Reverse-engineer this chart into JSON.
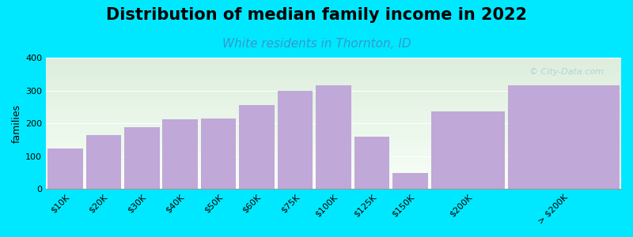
{
  "title": "Distribution of median family income in 2022",
  "subtitle": "White residents in Thornton, ID",
  "ylabel": "families",
  "categories": [
    "$10K",
    "$20K",
    "$30K",
    "$40K",
    "$50K",
    "$60K",
    "$75K",
    "$100K",
    "$125K",
    "$150K",
    "$200K",
    "> $200K"
  ],
  "values": [
    122,
    163,
    188,
    212,
    215,
    255,
    300,
    315,
    158,
    48,
    237,
    315
  ],
  "bar_widths": [
    1,
    1,
    1,
    1,
    1,
    1,
    1,
    1,
    1,
    1,
    2,
    3
  ],
  "bar_color": "#c0a8d8",
  "background_outer": "#00e8ff",
  "grad_top": "#ddeedd",
  "grad_bottom": "#f8fff8",
  "grid_color": "#ffffff",
  "title_fontsize": 15,
  "subtitle_fontsize": 11,
  "subtitle_color": "#3399cc",
  "ylabel_fontsize": 9,
  "tick_fontsize": 8,
  "ylim": [
    0,
    400
  ],
  "yticks": [
    0,
    100,
    200,
    300,
    400
  ],
  "watermark": "© City-Data.com"
}
